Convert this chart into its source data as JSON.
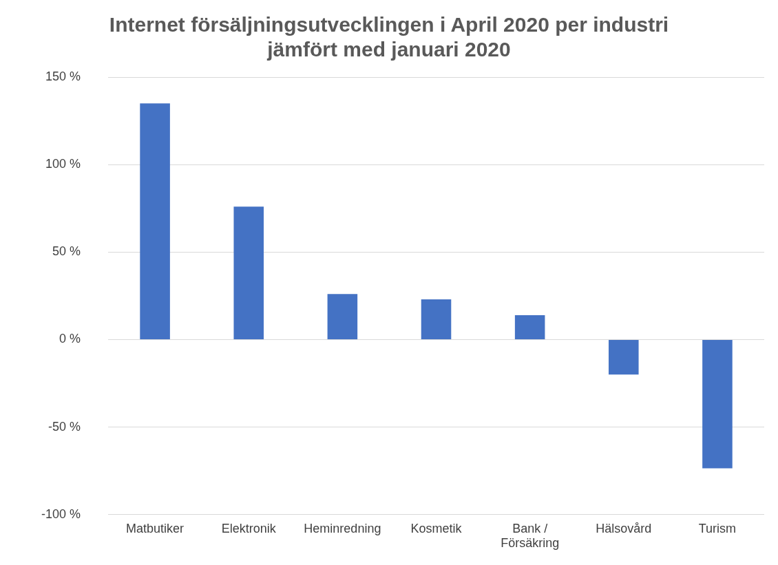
{
  "chart_data": {
    "type": "bar",
    "title": "Internet försäljningsutvecklingen i April 2020 per industri jämfört med januari 2020",
    "categories": [
      "Matbutiker",
      "Elektronik",
      "Heminredning",
      "Kosmetik",
      "Bank / Försäkring",
      "Hälsovård",
      "Turism"
    ],
    "values": [
      135,
      76,
      26,
      23,
      14,
      -20,
      -73.5
    ],
    "color": "#4472c4",
    "ylim": [
      -100,
      150
    ],
    "yticks": [
      {
        "value": -100,
        "label": "-100 %"
      },
      {
        "value": -50,
        "label": "-50 %"
      },
      {
        "value": 0,
        "label": "0 %"
      },
      {
        "value": 50,
        "label": "50 %"
      },
      {
        "value": 100,
        "label": "100 %"
      },
      {
        "value": 150,
        "label": "150 %"
      }
    ],
    "grid": "y",
    "legend": false
  }
}
